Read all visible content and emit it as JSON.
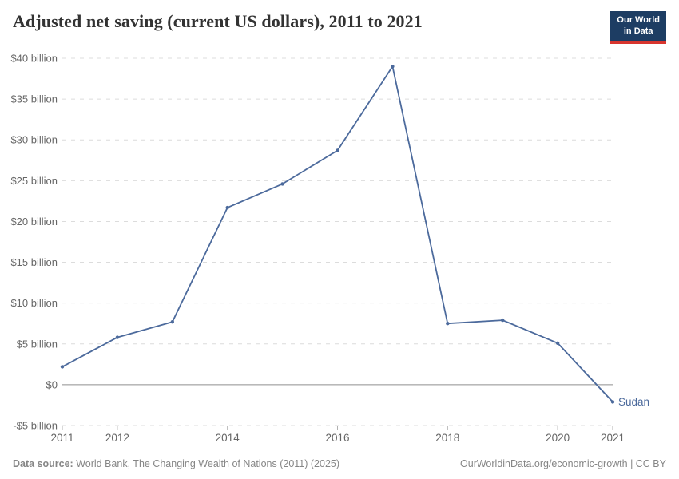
{
  "header": {
    "title": "Adjusted net saving (current US dollars), 2011 to 2021",
    "logo": {
      "line1": "Our World",
      "line2": "in Data"
    }
  },
  "brand_colors": {
    "logo_navy": "#1d3d63",
    "logo_red": "#d8352e"
  },
  "chart_data": {
    "type": "line",
    "title": "Adjusted net saving (current US dollars), 2011 to 2021",
    "entity": "Sudan",
    "x": [
      2011,
      2012,
      2013,
      2014,
      2015,
      2016,
      2017,
      2018,
      2019,
      2020,
      2021
    ],
    "series": [
      {
        "name": "Sudan",
        "values": [
          2.2,
          5.8,
          7.7,
          21.7,
          24.6,
          28.7,
          39.0,
          7.5,
          7.9,
          5.1,
          -2.1
        ]
      }
    ],
    "unit": "billion current US$",
    "ylim": [
      -5,
      40
    ],
    "xlim": [
      2011,
      2021
    ],
    "grid": true,
    "legend_position": "end-of-line-label",
    "line_color": "#4c6a9c",
    "tick_color": "#666666",
    "gridline_color": "#dcdcdc",
    "zeroline_color": "#8f8f8f",
    "y_ticks": [
      {
        "value": 40,
        "label": "$40 billion"
      },
      {
        "value": 35,
        "label": "$35 billion"
      },
      {
        "value": 30,
        "label": "$30 billion"
      },
      {
        "value": 25,
        "label": "$25 billion"
      },
      {
        "value": 20,
        "label": "$20 billion"
      },
      {
        "value": 15,
        "label": "$15 billion"
      },
      {
        "value": 10,
        "label": "$10 billion"
      },
      {
        "value": 5,
        "label": "$5 billion"
      },
      {
        "value": 0,
        "label": "$0"
      },
      {
        "value": -5,
        "label": "-$5 billion"
      }
    ],
    "x_ticks": [
      {
        "value": 2011,
        "label": "2011"
      },
      {
        "value": 2012,
        "label": "2012"
      },
      {
        "value": 2014,
        "label": "2014"
      },
      {
        "value": 2016,
        "label": "2016"
      },
      {
        "value": 2018,
        "label": "2018"
      },
      {
        "value": 2020,
        "label": "2020"
      },
      {
        "value": 2021,
        "label": "2021"
      }
    ]
  },
  "footer": {
    "source_label": "Data source:",
    "source_text": " World Bank, The Changing Wealth of Nations (2011) (2025)",
    "link_text": "OurWorldinData.org/economic-growth | CC BY"
  }
}
